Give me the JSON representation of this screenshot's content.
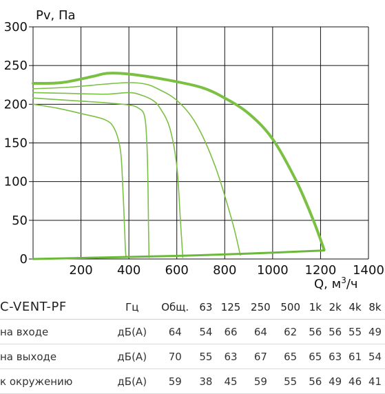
{
  "chart_data": {
    "type": "line",
    "ylabel": "Pv, Па",
    "xlabel_prefix": "Q, м",
    "xlabel_sup": "3",
    "xlabel_suffix": "/ч",
    "xlim": [
      0,
      1400
    ],
    "ylim": [
      0,
      300
    ],
    "x_ticks": [
      "200",
      "400",
      "600",
      "800",
      "1000",
      "1200",
      "1400"
    ],
    "y_ticks": [
      "300",
      "250",
      "200",
      "150",
      "100",
      "50",
      "0"
    ],
    "grid": true,
    "colors": {
      "curve": "#7ac143",
      "system_line": "#6cb83a"
    },
    "series": [
      {
        "x": [
          0,
          120,
          250,
          310,
          400,
          550,
          700,
          800,
          900,
          1000,
          1100,
          1170,
          1215
        ],
        "y": [
          227,
          228,
          236,
          240,
          239,
          232,
          222,
          208,
          188,
          155,
          100,
          50,
          12
        ]
      },
      {
        "x": [
          0,
          150,
          300,
          400,
          470,
          520,
          600,
          680,
          760,
          830,
          865
        ],
        "y": [
          220,
          222,
          226,
          228,
          226,
          220,
          205,
          175,
          120,
          50,
          5
        ]
      },
      {
        "x": [
          0,
          150,
          300,
          400,
          450,
          500,
          530,
          570,
          600,
          615,
          625
        ],
        "y": [
          215,
          214,
          213,
          215,
          212,
          205,
          195,
          170,
          120,
          50,
          2
        ]
      },
      {
        "x": [
          0,
          150,
          300,
          400,
          440,
          465,
          475,
          480,
          482,
          484
        ],
        "y": [
          208,
          205,
          202,
          199,
          195,
          185,
          150,
          90,
          40,
          2
        ]
      },
      {
        "x": [
          0,
          100,
          200,
          300,
          340,
          365,
          375,
          382,
          385,
          388
        ],
        "y": [
          200,
          195,
          188,
          180,
          168,
          140,
          90,
          40,
          15,
          2
        ]
      },
      {
        "x": [
          0,
          300,
          600,
          900,
          1215
        ],
        "y": [
          0,
          2,
          4,
          7,
          11
        ]
      }
    ]
  },
  "table": {
    "model": "C-VENT-PF",
    "col_hz": "Гц",
    "col_total": "Общ.",
    "bands": [
      "63",
      "125",
      "250",
      "500",
      "1k",
      "2k",
      "4k",
      "8k"
    ],
    "rows": [
      {
        "label": "на входе",
        "unit": "дБ(А)",
        "total": "64",
        "values": [
          "54",
          "66",
          "64",
          "62",
          "56",
          "56",
          "55",
          "49"
        ]
      },
      {
        "label": "на выходе",
        "unit": "дБ(А)",
        "total": "70",
        "values": [
          "55",
          "63",
          "67",
          "65",
          "65",
          "63",
          "61",
          "54"
        ]
      },
      {
        "label": "к окружению",
        "unit": "дБ(А)",
        "total": "59",
        "values": [
          "38",
          "45",
          "59",
          "55",
          "56",
          "49",
          "46",
          "41"
        ]
      }
    ]
  }
}
